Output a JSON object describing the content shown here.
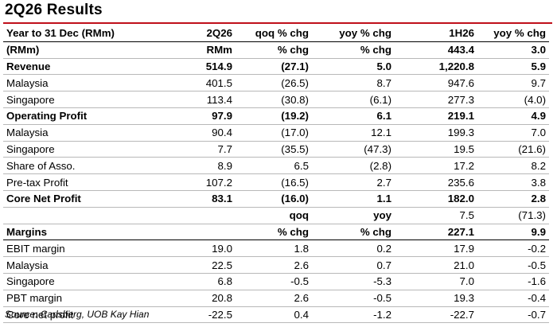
{
  "title": "2Q26 Results",
  "table": {
    "header": {
      "c0": "Year to 31 Dec (RMm)",
      "c1": "2Q26",
      "c2": "qoq % chg",
      "c3": "yoy % chg",
      "c4": "1H26",
      "c5": "yoy % chg"
    },
    "rows": [
      {
        "c0": "(RMm)",
        "c1": "RMm",
        "c2": "% chg",
        "c3": "% chg",
        "c4": "443.4",
        "c5": "3.0"
      },
      {
        "c0": "Revenue",
        "c1": "514.9",
        "c2": "(27.1)",
        "c3": "5.0",
        "c4": "1,220.8",
        "c5": "5.9"
      },
      {
        "c0": "Malaysia",
        "c1": "401.5",
        "c2": "(26.5)",
        "c3": "8.7",
        "c4": "947.6",
        "c5": "9.7"
      },
      {
        "c0": "Singapore",
        "c1": "113.4",
        "c2": "(30.8)",
        "c3": "(6.1)",
        "c4": "277.3",
        "c5": "(4.0)"
      },
      {
        "c0": "Operating Profit",
        "c1": "97.9",
        "c2": "(19.2)",
        "c3": "6.1",
        "c4": "219.1",
        "c5": "4.9"
      },
      {
        "c0": "Malaysia",
        "c1": "90.4",
        "c2": "(17.0)",
        "c3": "12.1",
        "c4": "199.3",
        "c5": "7.0"
      },
      {
        "c0": "Singapore",
        "c1": "7.7",
        "c2": "(35.5)",
        "c3": "(47.3)",
        "c4": "19.5",
        "c5": "(21.6)"
      },
      {
        "c0": "Share of Asso.",
        "c1": "8.9",
        "c2": "6.5",
        "c3": "(2.8)",
        "c4": "17.2",
        "c5": "8.2"
      },
      {
        "c0": "Pre-tax Profit",
        "c1": "107.2",
        "c2": "(16.5)",
        "c3": "2.7",
        "c4": "235.6",
        "c5": "3.8"
      },
      {
        "c0": "Core Net Profit",
        "c1": "83.1",
        "c2": "(16.0)",
        "c3": "1.1",
        "c4": "182.0",
        "c5": "2.8"
      },
      {
        "c0": "",
        "c1": "",
        "c2": "qoq",
        "c3": "yoy",
        "c4": "7.5",
        "c5": "(71.3)"
      },
      {
        "c0": "Margins",
        "c1": "",
        "c2": "% chg",
        "c3": "% chg",
        "c4": "227.1",
        "c5": "9.9"
      },
      {
        "c0": "EBIT margin",
        "c1": "19.0",
        "c2": "1.8",
        "c3": "0.2",
        "c4": "17.9",
        "c5": "-0.2"
      },
      {
        "c0": "Malaysia",
        "c1": "22.5",
        "c2": "2.6",
        "c3": "0.7",
        "c4": "21.0",
        "c5": "-0.5"
      },
      {
        "c0": "Singapore",
        "c1": "6.8",
        "c2": "-0.5",
        "c3": "-5.3",
        "c4": "7.0",
        "c5": "-1.6"
      },
      {
        "c0": "PBT margin",
        "c1": "20.8",
        "c2": "2.6",
        "c3": "-0.5",
        "c4": "19.3",
        "c5": "-0.4"
      },
      {
        "c0": "Core net profit",
        "c1": "-22.5",
        "c2": "0.4",
        "c3": "-1.2",
        "c4": "-22.7",
        "c5": "-0.7"
      }
    ]
  },
  "source": "Source: Carlsberg, UOB Kay Hian"
}
